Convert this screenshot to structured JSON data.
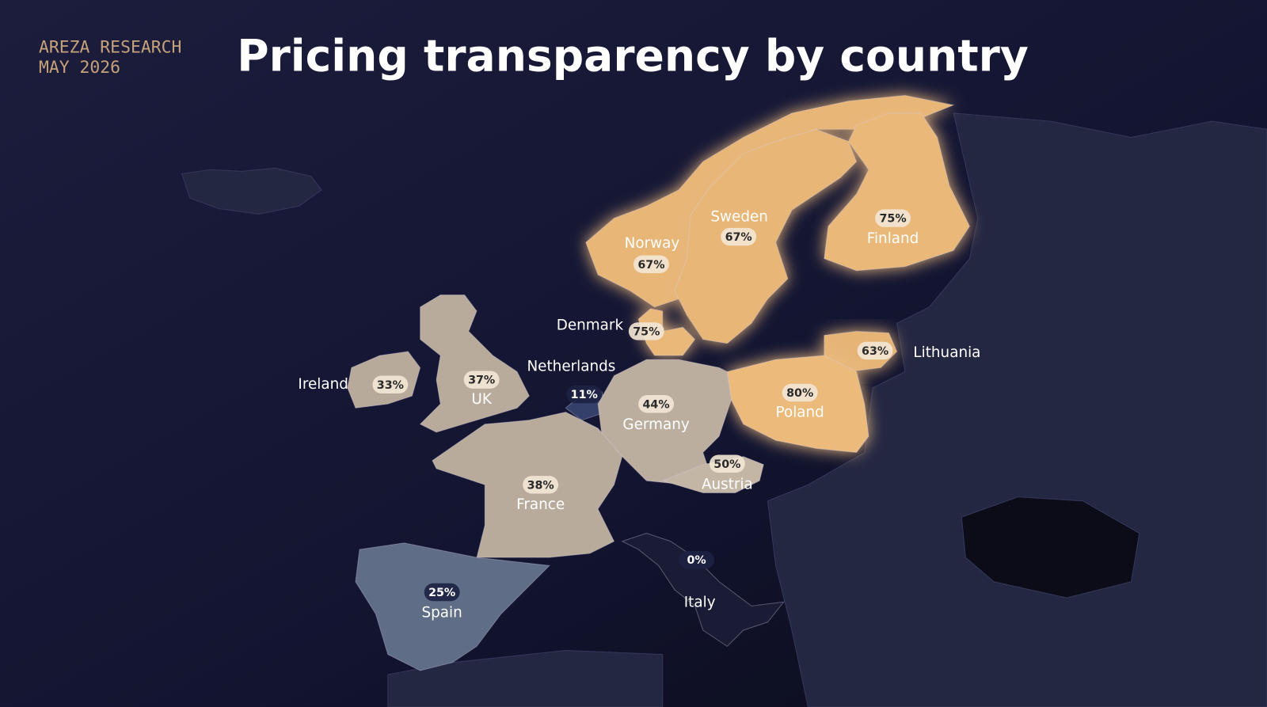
{
  "header": {
    "brand": "AREZA RESEARCH",
    "date": "MAY 2026"
  },
  "chart_data": {
    "type": "choropleth",
    "title": "Pricing transparency by country",
    "categories": [
      "Norway",
      "Sweden",
      "Finland",
      "Denmark",
      "Lithuania",
      "Poland",
      "Ireland",
      "UK",
      "Netherlands",
      "Germany",
      "Austria",
      "France",
      "Spain",
      "Italy"
    ],
    "values": [
      67,
      67,
      75,
      75,
      63,
      80,
      33,
      37,
      11,
      44,
      50,
      38,
      25,
      0
    ],
    "value_labels": [
      "67%",
      "67%",
      "75%",
      "75%",
      "63%",
      "80%",
      "33%",
      "37%",
      "11%",
      "44%",
      "50%",
      "38%",
      "25%",
      "0%"
    ],
    "colors": [
      "#e8b676",
      "#e8b676",
      "#eab879",
      "#eab879",
      "#e6b576",
      "#ecbb7c",
      "#b8aa9b",
      "#b9ab9c",
      "#34406a",
      "#bcae9f",
      "#c4b6a5",
      "#b9ab9c",
      "#5f6d86",
      "#1a1c36"
    ]
  }
}
